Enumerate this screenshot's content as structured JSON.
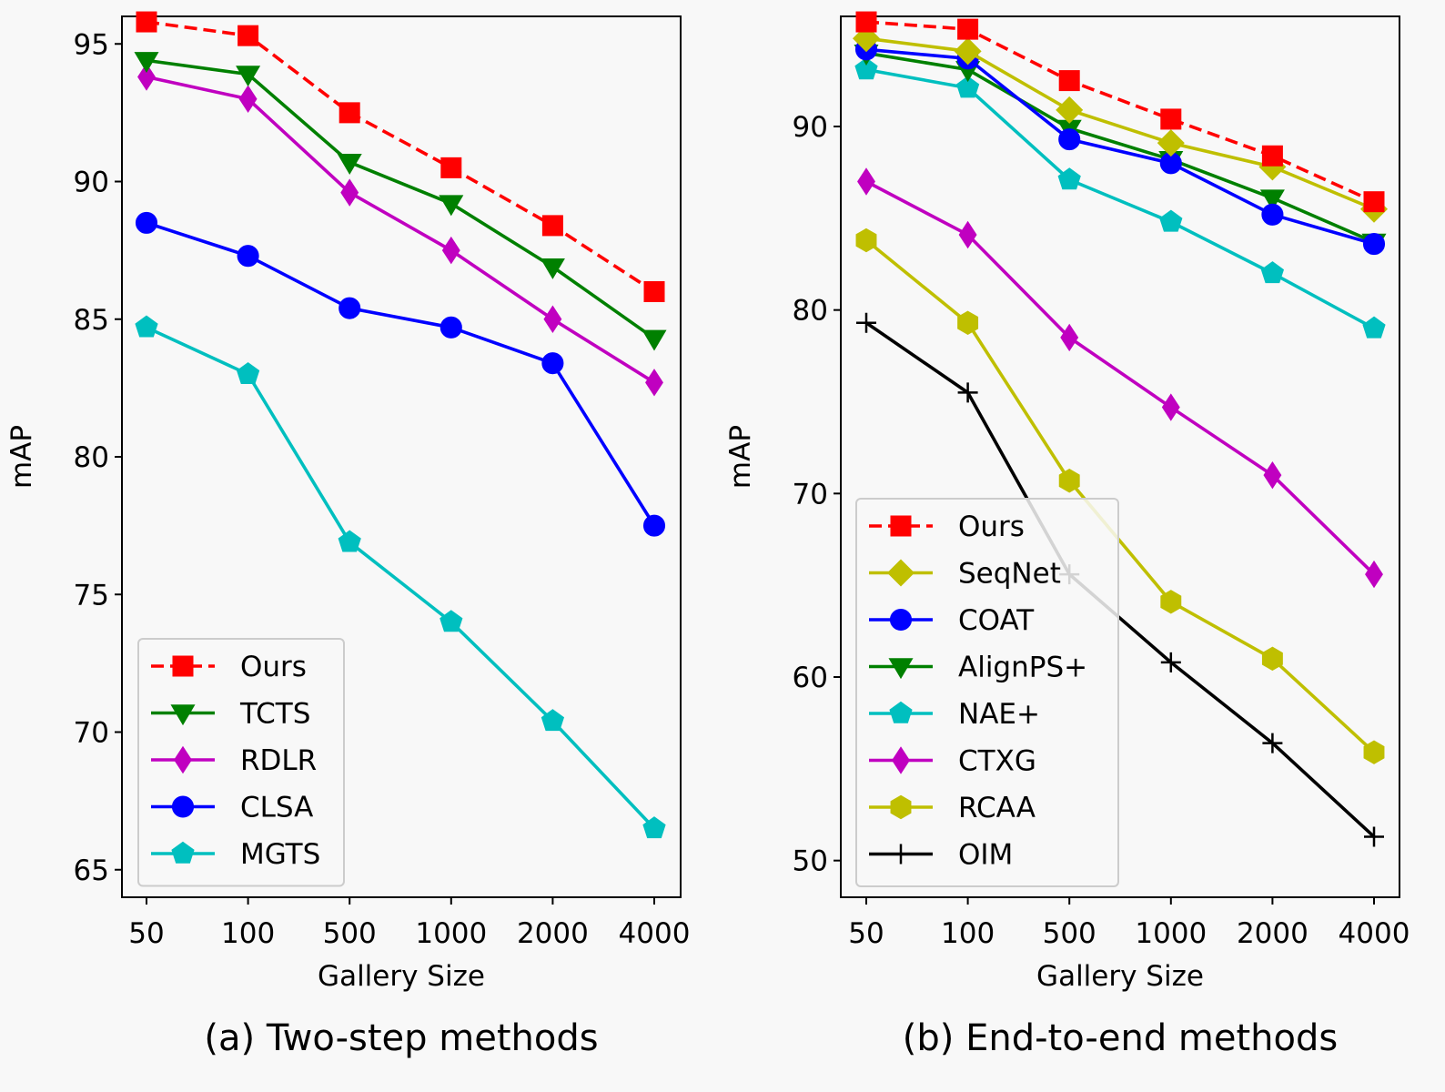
{
  "chart_data": [
    {
      "type": "line",
      "caption": "(a) Two-step methods",
      "xlabel": "Gallery Size",
      "ylabel": "mAP",
      "categories": [
        "50",
        "100",
        "500",
        "1000",
        "2000",
        "4000"
      ],
      "ylim": [
        64,
        96
      ],
      "yticks": [
        65,
        70,
        75,
        80,
        85,
        90,
        95
      ],
      "grid": false,
      "legend_position": "lower-left",
      "series": [
        {
          "name": "Ours",
          "color": "#ff0000",
          "marker": "square",
          "dashed": true,
          "values": [
            95.8,
            95.3,
            92.5,
            90.5,
            88.4,
            86.0
          ]
        },
        {
          "name": "TCTS",
          "color": "#008000",
          "marker": "triangle-down",
          "dashed": false,
          "values": [
            94.4,
            93.9,
            90.7,
            89.2,
            86.9,
            84.3
          ]
        },
        {
          "name": "RDLR",
          "color": "#c000c0",
          "marker": "thin-diamond",
          "dashed": false,
          "values": [
            93.8,
            93.0,
            89.6,
            87.5,
            85.0,
            82.7
          ]
        },
        {
          "name": "CLSA",
          "color": "#0000ff",
          "marker": "circle",
          "dashed": false,
          "values": [
            88.5,
            87.3,
            85.4,
            84.7,
            83.4,
            77.5
          ]
        },
        {
          "name": "MGTS",
          "color": "#00bfbf",
          "marker": "pentagon",
          "dashed": false,
          "values": [
            84.7,
            83.0,
            76.9,
            74.0,
            70.4,
            66.5
          ]
        }
      ]
    },
    {
      "type": "line",
      "caption": "(b) End-to-end methods",
      "xlabel": "Gallery Size",
      "ylabel": "mAP",
      "categories": [
        "50",
        "100",
        "500",
        "1000",
        "2000",
        "4000"
      ],
      "ylim": [
        48,
        96
      ],
      "yticks": [
        50,
        60,
        70,
        80,
        90
      ],
      "grid": false,
      "legend_position": "lower-left",
      "series": [
        {
          "name": "Ours",
          "color": "#ff0000",
          "marker": "square",
          "dashed": true,
          "values": [
            95.7,
            95.3,
            92.5,
            90.4,
            88.4,
            85.9
          ]
        },
        {
          "name": "SeqNet",
          "color": "#bfbf00",
          "marker": "diamond",
          "dashed": false,
          "values": [
            94.8,
            94.1,
            90.9,
            89.1,
            87.8,
            85.5
          ]
        },
        {
          "name": "COAT",
          "color": "#0000ff",
          "marker": "circle",
          "dashed": false,
          "values": [
            94.2,
            93.7,
            89.3,
            88.0,
            85.2,
            83.6
          ]
        },
        {
          "name": "AlignPS+",
          "color": "#008000",
          "marker": "triangle-down",
          "dashed": false,
          "values": [
            94.0,
            93.1,
            89.9,
            88.2,
            86.1,
            83.7
          ]
        },
        {
          "name": "NAE+",
          "color": "#00bfbf",
          "marker": "pentagon",
          "dashed": false,
          "values": [
            93.1,
            92.1,
            87.1,
            84.8,
            82.0,
            79.0
          ]
        },
        {
          "name": "CTXG",
          "color": "#c000c0",
          "marker": "thin-diamond",
          "dashed": false,
          "values": [
            87.0,
            84.1,
            78.5,
            74.7,
            71.0,
            65.6
          ]
        },
        {
          "name": "RCAA",
          "color": "#bfbf00",
          "marker": "hexagon",
          "dashed": false,
          "values": [
            83.8,
            79.3,
            70.7,
            64.1,
            61.0,
            55.9
          ]
        },
        {
          "name": "OIM",
          "color": "#000000",
          "marker": "plus",
          "dashed": false,
          "values": [
            79.3,
            75.5,
            65.6,
            60.8,
            56.4,
            51.3
          ]
        }
      ]
    }
  ]
}
